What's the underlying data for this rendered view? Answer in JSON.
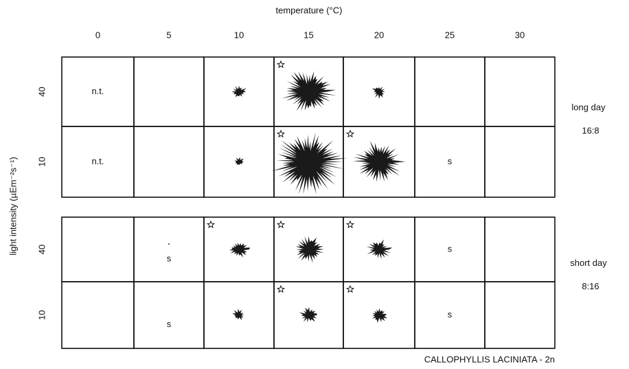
{
  "header": {
    "title": "temperature (°C)",
    "columns": [
      "0",
      "5",
      "10",
      "15",
      "20",
      "25",
      "30"
    ]
  },
  "y_label": "light intensity (µEm⁻²s⁻¹)",
  "panels": [
    {
      "label": "long day",
      "ratio": "16:8",
      "rows": [
        {
          "label": "40",
          "cells": [
            "n.t.",
            null,
            null,
            null,
            null,
            null,
            null
          ]
        },
        {
          "label": "10",
          "cells": [
            "n.t.",
            null,
            null,
            null,
            null,
            "s",
            null
          ]
        }
      ]
    },
    {
      "label": "short day",
      "ratio": "8:16",
      "rows": [
        {
          "label": "40",
          "cells": [
            null,
            "s",
            null,
            null,
            null,
            "s",
            null
          ]
        },
        {
          "label": "10",
          "cells": [
            null,
            "s",
            null,
            null,
            null,
            "s",
            null
          ]
        }
      ]
    }
  ],
  "footer": "CALLOPHYLLIS LACINIATA - 2n"
}
